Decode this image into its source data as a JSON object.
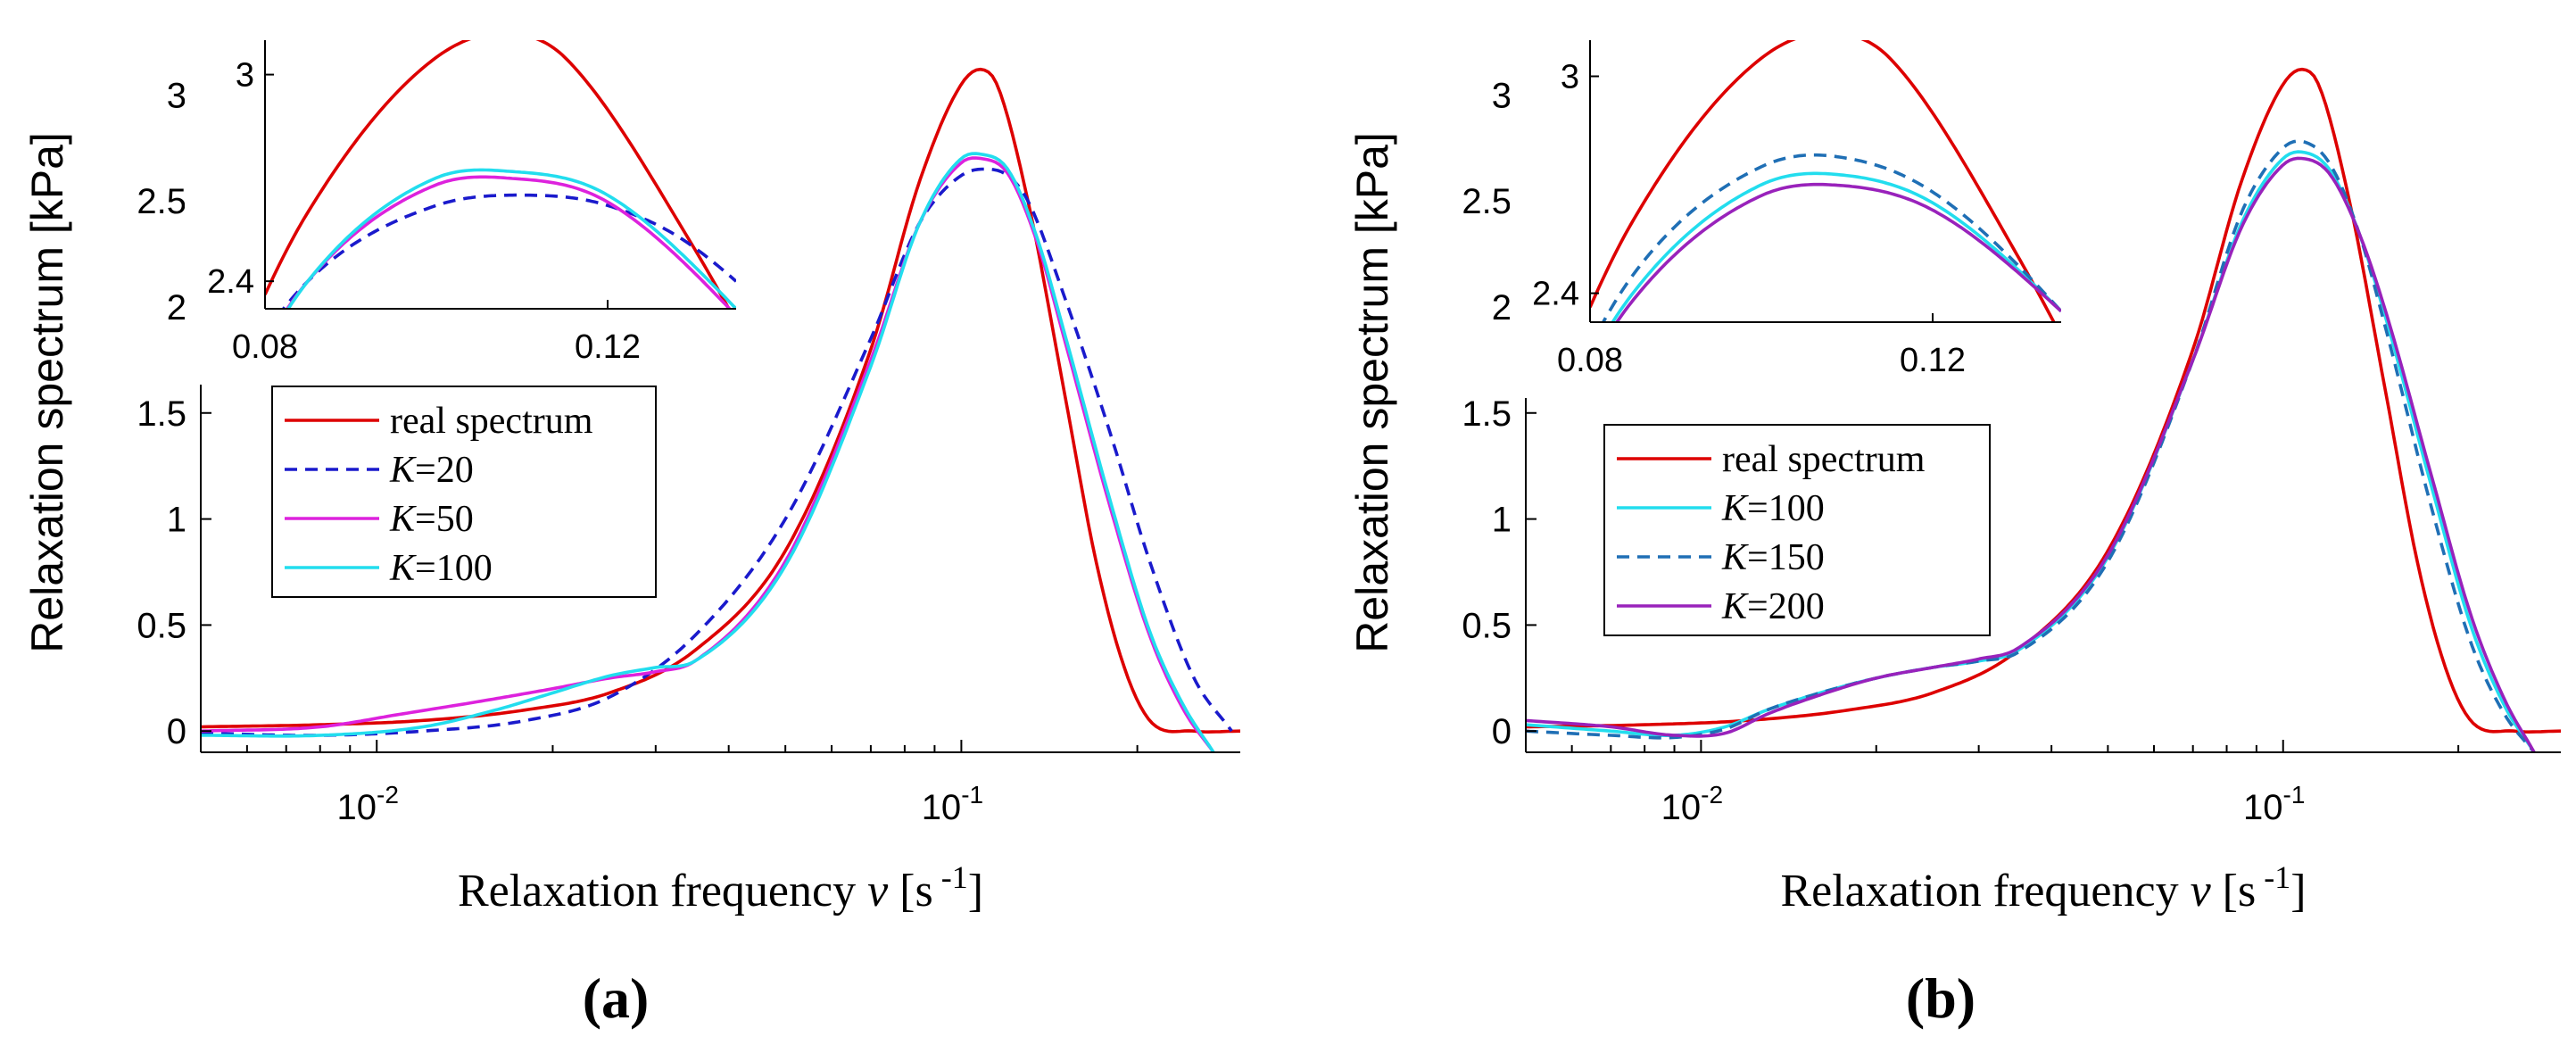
{
  "chart_data": [
    {
      "type": "line",
      "panel_label": "(a)",
      "xscale": "log",
      "xlim": [
        0.005,
        0.3
      ],
      "ylim": [
        -0.1,
        3.3
      ],
      "ylabel": "Relaxation spectrum  [kPa]",
      "xlabel_text": "Relaxation frequency ",
      "xlabel_var": "v",
      "xlabel_unit_open": "  [s",
      "xlabel_unit_exp": " -1",
      "xlabel_unit_close": "]",
      "xticks": [
        0.01,
        0.1
      ],
      "xtick_labels": [
        {
          "base": "10",
          "exp": "-2"
        },
        {
          "base": "10",
          "exp": "-1"
        }
      ],
      "yticks": [
        0,
        0.5,
        1,
        1.5,
        2,
        2.5,
        3
      ],
      "ytick_labels": [
        "0",
        "0.5",
        "1",
        "1.5",
        "2",
        "2.5",
        "3"
      ],
      "series": [
        {
          "name": "real spectrum",
          "legend_var": "",
          "legend_value": "real spectrum",
          "color": "#dd0000",
          "dash": "solid",
          "x": [
            0.005,
            0.008,
            0.012,
            0.018,
            0.025,
            0.035,
            0.05,
            0.07,
            0.085,
            0.1,
            0.108,
            0.115,
            0.13,
            0.15,
            0.17,
            0.19,
            0.21,
            0.25,
            0.3
          ],
          "y": [
            0.02,
            0.03,
            0.05,
            0.1,
            0.18,
            0.38,
            0.85,
            1.8,
            2.6,
            3.05,
            3.12,
            3.05,
            2.5,
            1.6,
            0.8,
            0.3,
            0.05,
            0.0,
            0.0
          ]
        },
        {
          "name": "K=20",
          "legend_var": "K",
          "legend_value": "=20",
          "color": "#1a1acc",
          "dash": "dashed",
          "x": [
            0.005,
            0.008,
            0.012,
            0.018,
            0.025,
            0.035,
            0.05,
            0.07,
            0.085,
            0.1,
            0.11,
            0.12,
            0.13,
            0.15,
            0.18,
            0.21,
            0.25,
            0.29
          ],
          "y": [
            -0.01,
            -0.02,
            0.0,
            0.05,
            0.16,
            0.45,
            1.0,
            1.85,
            2.4,
            2.62,
            2.65,
            2.62,
            2.5,
            2.05,
            1.4,
            0.8,
            0.25,
            0.0
          ]
        },
        {
          "name": "K=50",
          "legend_var": "K",
          "legend_value": "=50",
          "color": "#dd22dd",
          "dash": "solid",
          "x": [
            0.005,
            0.008,
            0.011,
            0.015,
            0.02,
            0.025,
            0.03,
            0.035,
            0.05,
            0.07,
            0.085,
            0.1,
            0.108,
            0.12,
            0.135,
            0.15,
            0.18,
            0.21,
            0.24,
            0.27
          ],
          "y": [
            0.0,
            0.02,
            0.08,
            0.14,
            0.2,
            0.25,
            0.28,
            0.33,
            0.8,
            1.75,
            2.4,
            2.68,
            2.7,
            2.63,
            2.3,
            1.85,
            1.05,
            0.45,
            0.1,
            -0.1
          ]
        },
        {
          "name": "K=100",
          "legend_var": "K",
          "legend_value": "=100",
          "color": "#22ddee",
          "dash": "solid",
          "x": [
            0.005,
            0.008,
            0.012,
            0.016,
            0.02,
            0.025,
            0.03,
            0.035,
            0.05,
            0.07,
            0.085,
            0.1,
            0.108,
            0.12,
            0.135,
            0.15,
            0.18,
            0.21,
            0.24,
            0.27
          ],
          "y": [
            -0.02,
            -0.02,
            0.02,
            0.1,
            0.18,
            0.26,
            0.3,
            0.33,
            0.78,
            1.72,
            2.4,
            2.7,
            2.72,
            2.65,
            2.32,
            1.88,
            1.08,
            0.47,
            0.12,
            -0.1
          ]
        }
      ],
      "inset": {
        "xlim": [
          0.08,
          0.135
        ],
        "ylim": [
          2.32,
          3.1
        ],
        "xticks": [
          0.08,
          0.12
        ],
        "xtick_labels": [
          "0.08",
          "0.12"
        ],
        "yticks": [
          2.4,
          3
        ],
        "ytick_labels": [
          "2.4",
          "3"
        ]
      }
    },
    {
      "type": "line",
      "panel_label": "(b)",
      "xscale": "log",
      "xlim": [
        0.005,
        0.3
      ],
      "ylim": [
        -0.1,
        3.3
      ],
      "ylabel": "Relaxation spectrum  [kPa]",
      "xlabel_text": "Relaxation frequency ",
      "xlabel_var": "v",
      "xlabel_unit_open": "  [s",
      "xlabel_unit_exp": " -1",
      "xlabel_unit_close": "]",
      "xticks": [
        0.01,
        0.1
      ],
      "xtick_labels": [
        {
          "base": "10",
          "exp": "-2"
        },
        {
          "base": "10",
          "exp": "-1"
        }
      ],
      "yticks": [
        0,
        0.5,
        1,
        1.5,
        2,
        2.5,
        3
      ],
      "ytick_labels": [
        "0",
        "0.5",
        "1",
        "1.5",
        "2",
        "2.5",
        "3"
      ],
      "series": [
        {
          "name": "real spectrum",
          "legend_var": "",
          "legend_value": "real spectrum",
          "color": "#dd0000",
          "dash": "solid",
          "x": [
            0.005,
            0.008,
            0.012,
            0.018,
            0.025,
            0.035,
            0.05,
            0.07,
            0.085,
            0.1,
            0.108,
            0.115,
            0.13,
            0.15,
            0.17,
            0.19,
            0.21,
            0.25,
            0.3
          ],
          "y": [
            0.02,
            0.03,
            0.05,
            0.1,
            0.18,
            0.38,
            0.85,
            1.8,
            2.6,
            3.05,
            3.12,
            3.05,
            2.5,
            1.6,
            0.8,
            0.3,
            0.05,
            0.0,
            0.0
          ]
        },
        {
          "name": "K=100",
          "legend_var": "K",
          "legend_value": "=100",
          "color": "#22ddee",
          "dash": "solid",
          "x": [
            0.005,
            0.007,
            0.009,
            0.011,
            0.013,
            0.016,
            0.02,
            0.025,
            0.03,
            0.035,
            0.05,
            0.07,
            0.085,
            0.1,
            0.108,
            0.12,
            0.135,
            0.15,
            0.18,
            0.21,
            0.24,
            0.27
          ],
          "y": [
            0.03,
            0.0,
            -0.02,
            0.02,
            0.1,
            0.18,
            0.25,
            0.3,
            0.33,
            0.38,
            0.82,
            1.75,
            2.4,
            2.7,
            2.73,
            2.65,
            2.35,
            1.95,
            1.15,
            0.5,
            0.12,
            -0.1
          ]
        },
        {
          "name": "K=150",
          "legend_var": "K",
          "legend_value": "=150",
          "color": "#1f6fb5",
          "dash": "dashed",
          "x": [
            0.005,
            0.007,
            0.009,
            0.011,
            0.013,
            0.016,
            0.02,
            0.025,
            0.03,
            0.035,
            0.05,
            0.07,
            0.085,
            0.1,
            0.108,
            0.12,
            0.135,
            0.15,
            0.18,
            0.21,
            0.24,
            0.27
          ],
          "y": [
            0.0,
            -0.02,
            -0.03,
            0.01,
            0.1,
            0.18,
            0.25,
            0.3,
            0.33,
            0.37,
            0.8,
            1.75,
            2.45,
            2.75,
            2.78,
            2.68,
            2.35,
            1.9,
            1.05,
            0.42,
            0.08,
            -0.1
          ]
        },
        {
          "name": "K=200",
          "legend_var": "K",
          "legend_value": "=200",
          "color": "#9922bb",
          "dash": "solid",
          "x": [
            0.005,
            0.007,
            0.009,
            0.011,
            0.013,
            0.016,
            0.02,
            0.025,
            0.03,
            0.035,
            0.05,
            0.07,
            0.085,
            0.1,
            0.108,
            0.12,
            0.135,
            0.15,
            0.18,
            0.21,
            0.24,
            0.27
          ],
          "y": [
            0.05,
            0.02,
            -0.02,
            -0.01,
            0.08,
            0.17,
            0.25,
            0.3,
            0.34,
            0.39,
            0.83,
            1.75,
            2.38,
            2.67,
            2.7,
            2.63,
            2.35,
            1.98,
            1.2,
            0.55,
            0.15,
            -0.1
          ]
        }
      ],
      "inset": {
        "xlim": [
          0.08,
          0.135
        ],
        "ylim": [
          2.32,
          3.1
        ],
        "xticks": [
          0.08,
          0.12
        ],
        "xtick_labels": [
          "0.08",
          "0.12"
        ],
        "yticks": [
          2.4,
          3
        ],
        "ytick_labels": [
          "2.4",
          "3"
        ]
      }
    }
  ]
}
